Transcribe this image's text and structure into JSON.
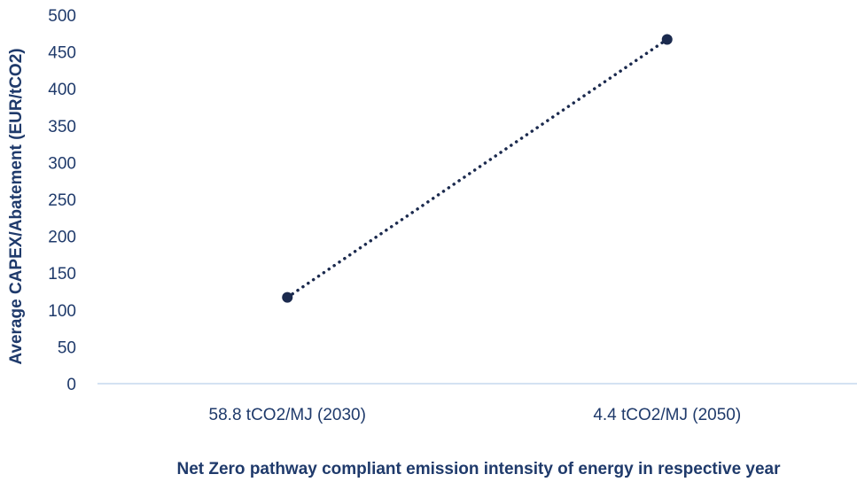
{
  "chart_data": {
    "type": "line",
    "categories": [
      "58.8 tCO2/MJ (2030)",
      "4.4 tCO2/MJ (2050)"
    ],
    "series": [
      {
        "values": [
          117,
          467
        ]
      }
    ],
    "xlabel": "Net Zero pathway compliant emission intensity of energy in respective year",
    "ylabel": "Average CAPEX/Abatement (EUR/tCO2)",
    "ylim": [
      0,
      500
    ],
    "yticks": [
      0,
      50,
      100,
      150,
      200,
      250,
      300,
      350,
      400,
      450,
      500
    ],
    "grid": false,
    "line_style": "dotted",
    "marker": "filled-circle",
    "colors": {
      "series": "#1b2a4e",
      "axis_line": "#c5d9ee",
      "text": "#1f3a6b"
    }
  }
}
